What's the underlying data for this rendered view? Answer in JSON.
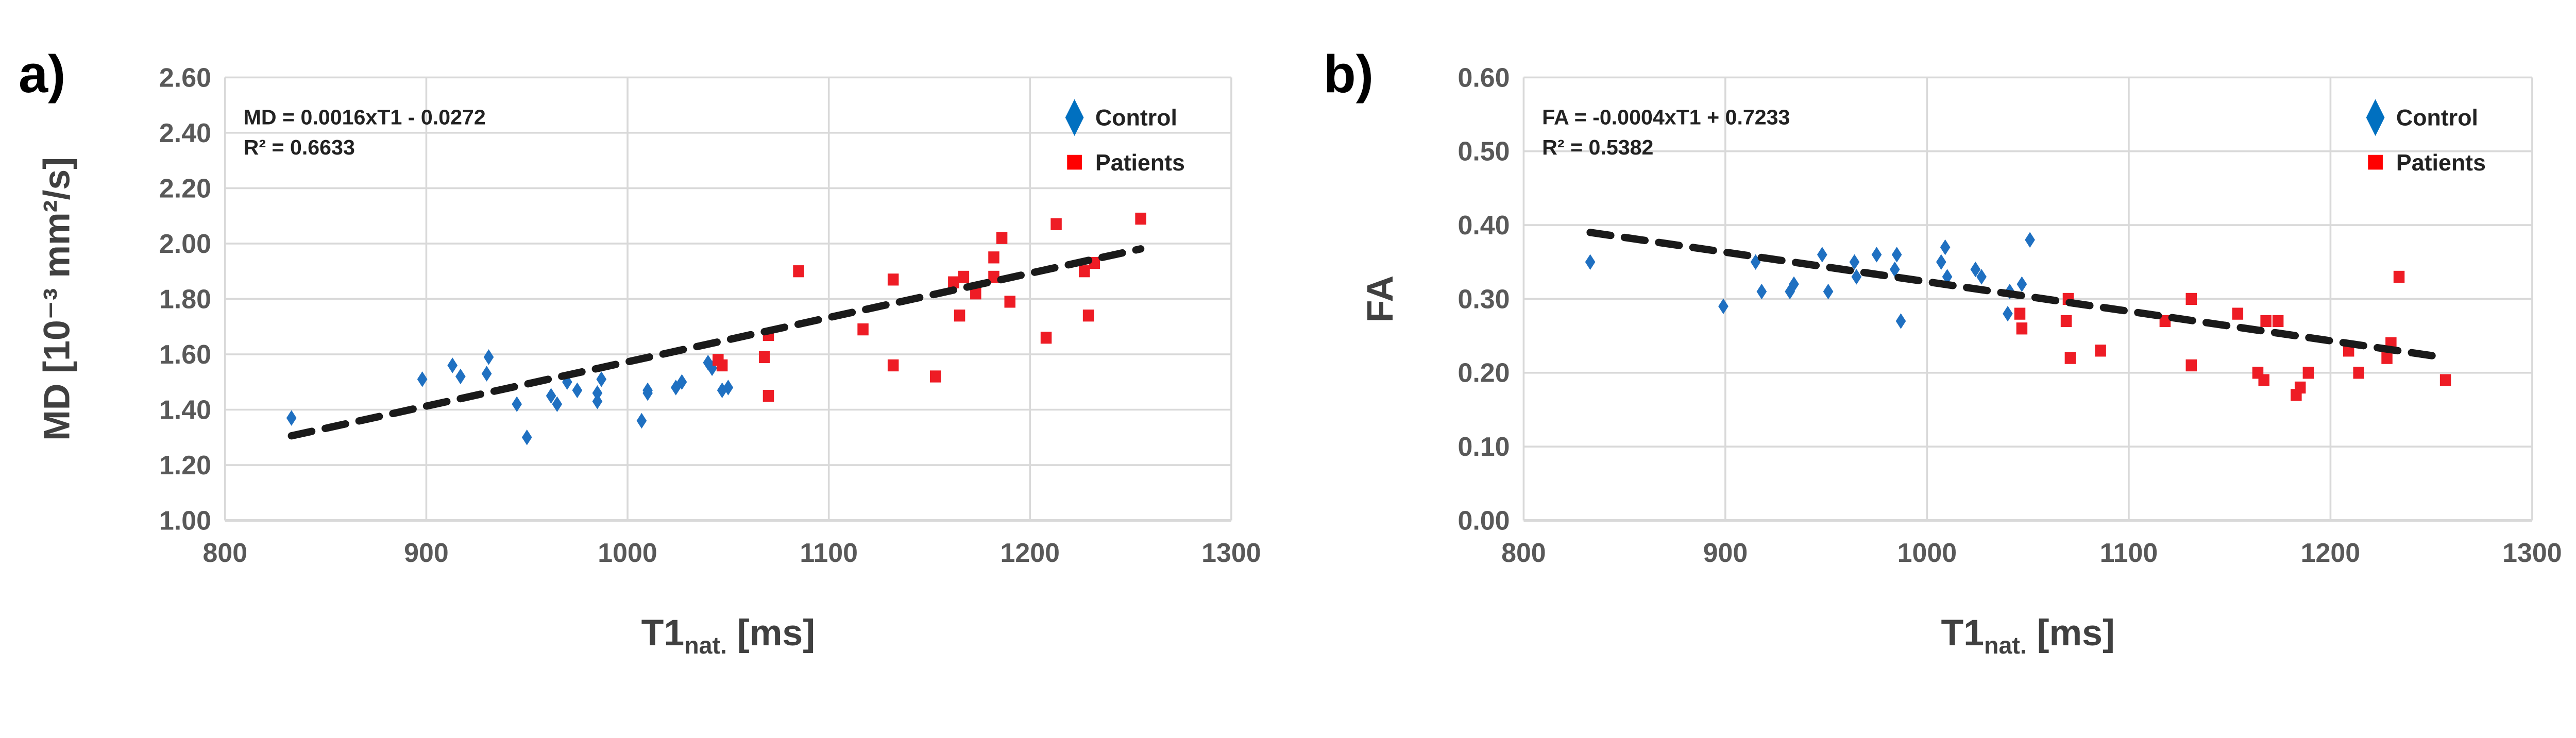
{
  "colors": {
    "control": "#1F70C1",
    "patients": "#EE1C25",
    "trend": "#1a1a1a",
    "grid": "#d9d9d9"
  },
  "chart_data": [
    {
      "type": "scatter",
      "panel_label": "a)",
      "xlabel_main": "T1",
      "xlabel_sub": "nat.",
      "xlabel_unit": " [ms]",
      "ylabel": "MD [10⁻³ mm²/s]",
      "xlim": [
        800,
        1300
      ],
      "ylim": [
        1.0,
        2.6
      ],
      "xticks": [
        "800",
        "900",
        "1000",
        "1100",
        "1200",
        "1300"
      ],
      "yticks": [
        "1.00",
        "1.20",
        "1.40",
        "1.60",
        "1.80",
        "2.00",
        "2.20",
        "2.40",
        "2.60"
      ],
      "grid": true,
      "legend_position": "top-right",
      "equation": "MD = 0.0016xT1 - 0.0272",
      "r2_label": "R² = 0.6633",
      "trendline": {
        "slope": 0.0016,
        "intercept": -0.0272,
        "x_range": [
          833,
          1255
        ]
      },
      "series": [
        {
          "name": "Control",
          "marker": "diamond",
          "x": [
            833,
            898,
            913,
            917,
            930,
            931,
            945,
            950,
            962,
            965,
            970,
            975,
            985,
            985,
            987,
            1007,
            1010,
            1010,
            1024,
            1027,
            1040,
            1042,
            1047,
            1050
          ],
          "y": [
            1.37,
            1.51,
            1.56,
            1.52,
            1.53,
            1.59,
            1.42,
            1.3,
            1.45,
            1.42,
            1.5,
            1.47,
            1.43,
            1.46,
            1.51,
            1.36,
            1.47,
            1.46,
            1.48,
            1.5,
            1.57,
            1.55,
            1.47,
            1.48
          ]
        },
        {
          "name": "Patients",
          "marker": "square",
          "x": [
            1045,
            1047,
            1068,
            1070,
            1070,
            1085,
            1117,
            1132,
            1132,
            1153,
            1162,
            1165,
            1167,
            1173,
            1182,
            1182,
            1186,
            1190,
            1208,
            1213,
            1227,
            1229,
            1232,
            1255
          ],
          "y": [
            1.58,
            1.56,
            1.59,
            1.45,
            1.67,
            1.9,
            1.69,
            1.87,
            1.56,
            1.52,
            1.86,
            1.74,
            1.88,
            1.82,
            1.88,
            1.95,
            2.02,
            1.79,
            1.66,
            2.07,
            1.9,
            1.74,
            1.93,
            2.09
          ]
        }
      ]
    },
    {
      "type": "scatter",
      "panel_label": "b)",
      "xlabel_main": "T1",
      "xlabel_sub": "nat.",
      "xlabel_unit": " [ms]",
      "ylabel": "FA",
      "xlim": [
        800,
        1300
      ],
      "ylim": [
        0.0,
        0.6
      ],
      "xticks": [
        "800",
        "900",
        "1000",
        "1100",
        "1200",
        "1300"
      ],
      "yticks": [
        "0.00",
        "0.10",
        "0.20",
        "0.30",
        "0.40",
        "0.50",
        "0.60"
      ],
      "grid": true,
      "legend_position": "top-right",
      "equation": "FA = -0.0004xT1 + 0.7233",
      "r2_label": "R² = 0.5382",
      "trendline": {
        "slope": -0.0004,
        "intercept": 0.7233,
        "x_range": [
          833,
          1257
        ]
      },
      "series": [
        {
          "name": "Control",
          "marker": "diamond",
          "x": [
            833,
            899,
            915,
            918,
            932,
            934,
            948,
            951,
            964,
            965,
            975,
            984,
            985,
            987,
            1007,
            1009,
            1010,
            1024,
            1027,
            1040,
            1041,
            1047,
            1051
          ],
          "y": [
            0.35,
            0.29,
            0.35,
            0.31,
            0.31,
            0.32,
            0.36,
            0.31,
            0.35,
            0.33,
            0.36,
            0.34,
            0.36,
            0.27,
            0.35,
            0.37,
            0.33,
            0.34,
            0.33,
            0.28,
            0.31,
            0.32,
            0.38
          ]
        },
        {
          "name": "Patients",
          "marker": "square",
          "x": [
            1046,
            1047,
            1070,
            1069,
            1071,
            1086,
            1118,
            1131,
            1131,
            1154,
            1164,
            1167,
            1168,
            1174,
            1183,
            1185,
            1189,
            1209,
            1214,
            1228,
            1230,
            1234,
            1257
          ],
          "y": [
            0.28,
            0.26,
            0.3,
            0.27,
            0.22,
            0.23,
            0.27,
            0.3,
            0.21,
            0.28,
            0.2,
            0.19,
            0.27,
            0.27,
            0.17,
            0.18,
            0.2,
            0.23,
            0.2,
            0.22,
            0.24,
            0.33,
            0.19
          ]
        }
      ]
    }
  ]
}
